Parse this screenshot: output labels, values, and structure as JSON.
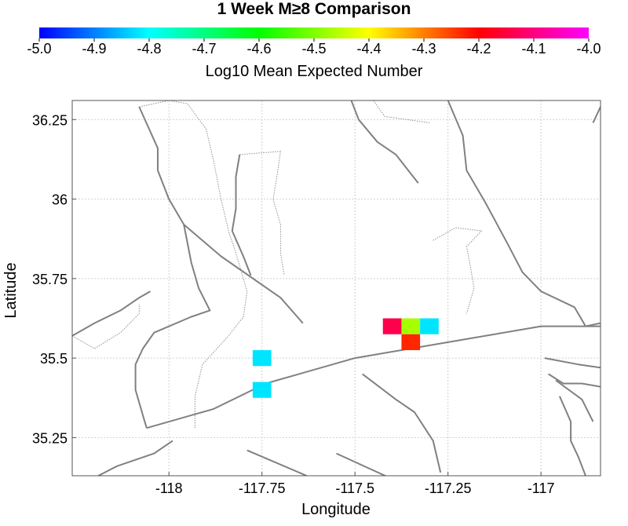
{
  "title": "1 Week M≥8 Comparison",
  "colorbar": {
    "label": "Log10 Mean Expected Number",
    "range": [
      -5.0,
      -4.0
    ],
    "ticks": [
      "-5.0",
      "-4.9",
      "-4.8",
      "-4.7",
      "-4.6",
      "-4.5",
      "-4.4",
      "-4.3",
      "-4.2",
      "-4.1",
      "-4.0"
    ],
    "stops": [
      {
        "v": 0.0,
        "color": "#0000ff"
      },
      {
        "v": 0.2,
        "color": "#00ffff"
      },
      {
        "v": 0.4,
        "color": "#00ff00"
      },
      {
        "v": 0.6,
        "color": "#ffff00"
      },
      {
        "v": 0.8,
        "color": "#ff0000"
      },
      {
        "v": 1.0,
        "color": "#ff00ff"
      }
    ]
  },
  "chart_data": {
    "type": "heatmap",
    "title": "1 Week M≥8 Comparison",
    "xlabel": "Longitude",
    "ylabel": "Latitude",
    "xlim": [
      -118.26,
      -116.84
    ],
    "ylim": [
      35.13,
      36.31
    ],
    "xticks": [
      {
        "value": -118,
        "label": "-118"
      },
      {
        "value": -117.75,
        "label": "-117.75"
      },
      {
        "value": -117.5,
        "label": "-117.5"
      },
      {
        "value": -117.25,
        "label": "-117.25"
      },
      {
        "value": -117,
        "label": "-117"
      }
    ],
    "yticks": [
      {
        "value": 36.25,
        "label": "36.25"
      },
      {
        "value": 36,
        "label": "36"
      },
      {
        "value": 35.75,
        "label": "35.75"
      },
      {
        "value": 35.5,
        "label": "35.5"
      },
      {
        "value": 35.25,
        "label": "35.25"
      }
    ],
    "grid": true,
    "cell_size": 0.05,
    "cells": [
      {
        "lon": -117.75,
        "lat": 35.5,
        "value": -4.82
      },
      {
        "lon": -117.75,
        "lat": 35.4,
        "value": -4.82
      },
      {
        "lon": -117.4,
        "lat": 35.6,
        "value": -4.14
      },
      {
        "lon": -117.35,
        "lat": 35.6,
        "value": -4.47
      },
      {
        "lon": -117.3,
        "lat": 35.6,
        "value": -4.82
      },
      {
        "lon": -117.35,
        "lat": 35.55,
        "value": -4.23
      }
    ],
    "fault_color": "#808080",
    "faults": [
      [
        [
          -118.26,
          35.57
        ],
        [
          -118.2,
          35.61
        ],
        [
          -118.13,
          35.65
        ],
        [
          -118.08,
          35.69
        ],
        [
          -118.05,
          35.71
        ]
      ],
      [
        [
          -118.06,
          35.28
        ],
        [
          -117.88,
          35.34
        ],
        [
          -117.74,
          35.42
        ],
        [
          -117.5,
          35.5
        ],
        [
          -117.25,
          35.55
        ],
        [
          -117.0,
          35.6
        ],
        [
          -116.84,
          35.6
        ]
      ],
      [
        [
          -118.08,
          36.29
        ],
        [
          -118.03,
          36.16
        ],
        [
          -118.03,
          36.09
        ],
        [
          -118.0,
          36.0
        ],
        [
          -117.96,
          35.92
        ],
        [
          -117.94,
          35.8
        ],
        [
          -117.92,
          35.72
        ],
        [
          -117.89,
          35.65
        ],
        [
          -117.94,
          35.63
        ],
        [
          -118.04,
          35.58
        ],
        [
          -118.07,
          35.53
        ],
        [
          -118.09,
          35.48
        ],
        [
          -118.09,
          35.4
        ],
        [
          -118.07,
          35.32
        ],
        [
          -118.06,
          35.28
        ]
      ],
      [
        [
          -117.81,
          36.14
        ],
        [
          -117.82,
          36.07
        ],
        [
          -117.82,
          35.97
        ],
        [
          -117.83,
          35.9
        ],
        [
          -117.8,
          35.82
        ],
        [
          -117.78,
          35.76
        ]
      ],
      [
        [
          -117.96,
          35.92
        ],
        [
          -117.86,
          35.82
        ],
        [
          -117.7,
          35.69
        ],
        [
          -117.64,
          35.61
        ]
      ],
      [
        [
          -117.51,
          36.31
        ],
        [
          -117.49,
          36.25
        ],
        [
          -117.44,
          36.18
        ],
        [
          -117.39,
          36.14
        ],
        [
          -117.33,
          36.05
        ]
      ],
      [
        [
          -117.25,
          36.31
        ],
        [
          -117.21,
          36.2
        ],
        [
          -117.2,
          36.09
        ],
        [
          -117.15,
          35.99
        ],
        [
          -117.09,
          35.86
        ],
        [
          -117.05,
          35.77
        ],
        [
          -117.0,
          35.71
        ],
        [
          -116.91,
          35.66
        ],
        [
          -116.88,
          35.6
        ]
      ],
      [
        [
          -116.84,
          35.61
        ],
        [
          -116.88,
          35.6
        ]
      ],
      [
        [
          -116.99,
          35.5
        ],
        [
          -116.9,
          35.48
        ],
        [
          -116.84,
          35.47
        ]
      ],
      [
        [
          -116.98,
          35.45
        ],
        [
          -116.94,
          35.42
        ],
        [
          -116.89,
          35.42
        ],
        [
          -116.84,
          35.41
        ]
      ],
      [
        [
          -116.96,
          35.43
        ],
        [
          -116.89,
          35.37
        ],
        [
          -116.86,
          35.3
        ]
      ],
      [
        [
          -116.95,
          35.38
        ],
        [
          -116.92,
          35.3
        ],
        [
          -116.92,
          35.24
        ],
        [
          -116.9,
          35.19
        ],
        [
          -116.88,
          35.13
        ]
      ],
      [
        [
          -117.48,
          35.45
        ],
        [
          -117.39,
          35.37
        ],
        [
          -117.34,
          35.33
        ],
        [
          -117.29,
          35.24
        ],
        [
          -117.27,
          35.14
        ]
      ],
      [
        [
          -117.55,
          35.2
        ],
        [
          -117.4,
          35.12
        ],
        [
          -117.38,
          35.1
        ]
      ],
      [
        [
          -117.79,
          35.21
        ],
        [
          -117.63,
          35.13
        ]
      ],
      [
        [
          -118.19,
          35.13
        ],
        [
          -118.14,
          35.16
        ],
        [
          -118.04,
          35.2
        ],
        [
          -117.99,
          35.24
        ]
      ],
      [
        [
          -116.84,
          36.29
        ],
        [
          -116.86,
          36.24
        ]
      ]
    ],
    "traces": [
      [
        [
          -118.08,
          36.29
        ],
        [
          -118.0,
          36.31
        ],
        [
          -117.95,
          36.3
        ],
        [
          -117.9,
          36.22
        ],
        [
          -117.88,
          36.12
        ],
        [
          -117.86,
          36.0
        ],
        [
          -117.84,
          35.9
        ],
        [
          -117.82,
          35.83
        ],
        [
          -117.79,
          35.71
        ],
        [
          -117.8,
          35.63
        ],
        [
          -117.84,
          35.57
        ],
        [
          -117.91,
          35.48
        ],
        [
          -117.93,
          35.38
        ],
        [
          -117.93,
          35.28
        ]
      ],
      [
        [
          -117.81,
          36.14
        ],
        [
          -117.7,
          36.15
        ],
        [
          -117.71,
          36.07
        ],
        [
          -117.72,
          36.0
        ],
        [
          -117.7,
          35.92
        ],
        [
          -117.7,
          35.83
        ],
        [
          -117.69,
          35.76
        ]
      ],
      [
        [
          -117.29,
          35.87
        ],
        [
          -117.23,
          35.91
        ],
        [
          -117.16,
          35.9
        ],
        [
          -117.2,
          35.85
        ],
        [
          -117.19,
          35.79
        ],
        [
          -117.18,
          35.72
        ],
        [
          -117.2,
          35.64
        ]
      ],
      [
        [
          -117.45,
          36.31
        ],
        [
          -117.42,
          36.26
        ],
        [
          -117.3,
          36.24
        ]
      ],
      [
        [
          -118.26,
          35.57
        ],
        [
          -118.2,
          35.53
        ],
        [
          -118.13,
          35.58
        ],
        [
          -118.08,
          35.64
        ],
        [
          -118.08,
          35.67
        ]
      ]
    ]
  }
}
